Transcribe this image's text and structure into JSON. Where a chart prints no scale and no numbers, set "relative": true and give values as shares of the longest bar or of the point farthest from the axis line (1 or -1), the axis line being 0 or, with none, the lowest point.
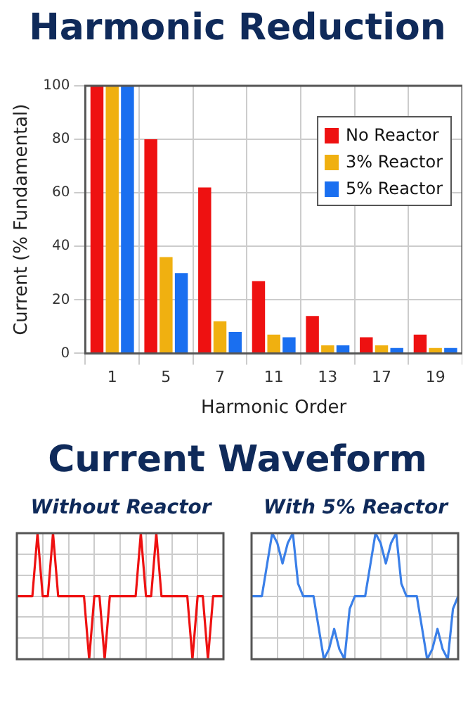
{
  "chart_data": [
    {
      "type": "bar",
      "title": "Harmonic Reduction",
      "xlabel": "Harmonic Order",
      "ylabel": "Current (% Fundamental)",
      "categories": [
        "1",
        "5",
        "7",
        "11",
        "13",
        "17",
        "19"
      ],
      "series": [
        {
          "name": "No Reactor",
          "color": "#ee1111",
          "values": [
            100,
            80,
            62,
            27,
            14,
            6,
            7
          ]
        },
        {
          "name": "3% Reactor",
          "color": "#f0b010",
          "values": [
            100,
            36,
            12,
            7,
            3,
            3,
            2
          ]
        },
        {
          "name": "5% Reactor",
          "color": "#1a6ff0",
          "values": [
            100,
            30,
            8,
            6,
            3,
            2,
            2
          ]
        }
      ],
      "ylim": [
        0,
        100
      ],
      "yticks": [
        0,
        20,
        40,
        60,
        80,
        100
      ],
      "grid": true,
      "legend": "top right"
    },
    {
      "type": "line",
      "title": "Current Waveform",
      "subtitle": "Without Reactor",
      "relative": true,
      "grid": true,
      "marker": "none",
      "categories": [
        null,
        null,
        null,
        null,
        null,
        null,
        null,
        null,
        null,
        null,
        null,
        null,
        null,
        null,
        null,
        null,
        null,
        null,
        null,
        null,
        null,
        null,
        null,
        null,
        null,
        null,
        null,
        null,
        null,
        null,
        null,
        null,
        null,
        null,
        null,
        null,
        null,
        null,
        null,
        null,
        null
      ],
      "series": [
        {
          "color": "#ee1111",
          "values": [
            0.5,
            0.5,
            0.5,
            0.5,
            1,
            0.5,
            0.5,
            1,
            0.5,
            0.5,
            0.5,
            0.5,
            0.5,
            0.5,
            0,
            0.5,
            0.5,
            0,
            0.5,
            0.5,
            0.5,
            0.5,
            0.5,
            0.5,
            1,
            0.5,
            0.5,
            1,
            0.5,
            0.5,
            0.5,
            0.5,
            0.5,
            0.5,
            0,
            0.5,
            0.5,
            0,
            0.5,
            0.5,
            0.5
          ]
        }
      ]
    },
    {
      "type": "line",
      "subtitle": "With 5% Reactor",
      "relative": true,
      "grid": true,
      "marker": "none",
      "categories": [
        null,
        null,
        null,
        null,
        null,
        null,
        null,
        null,
        null,
        null,
        null,
        null,
        null,
        null,
        null,
        null,
        null,
        null,
        null,
        null,
        null,
        null,
        null,
        null,
        null,
        null,
        null,
        null,
        null,
        null,
        null,
        null,
        null,
        null,
        null,
        null,
        null,
        null,
        null,
        null,
        null
      ],
      "series": [
        {
          "color": "#3a7fe8",
          "values": [
            0.5,
            0.5,
            0.5,
            0.75,
            1,
            0.92,
            0.76,
            0.92,
            1,
            0.6,
            0.5,
            0.5,
            0.5,
            0.25,
            0,
            0.08,
            0.24,
            0.08,
            0,
            0.4,
            0.5,
            0.5,
            0.5,
            0.75,
            1,
            0.92,
            0.76,
            0.92,
            1,
            0.6,
            0.5,
            0.5,
            0.5,
            0.25,
            0,
            0.08,
            0.24,
            0.08,
            0,
            0.4,
            0.5
          ]
        }
      ]
    }
  ]
}
